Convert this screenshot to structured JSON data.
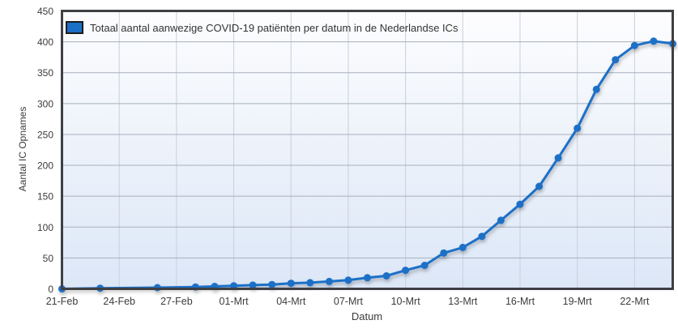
{
  "chart_data": {
    "type": "line",
    "title": "",
    "xlabel": "Datum",
    "ylabel": "Aantal IC Opnames",
    "legend_position": "top-left-inside",
    "grid": true,
    "ylim": [
      0,
      450
    ],
    "yticks": [
      0,
      50,
      100,
      150,
      200,
      250,
      300,
      350,
      400,
      450
    ],
    "x_day_span": [
      0,
      32
    ],
    "xticks": [
      {
        "day": 0,
        "label": "21-Feb"
      },
      {
        "day": 3,
        "label": "24-Feb"
      },
      {
        "day": 6,
        "label": "27-Feb"
      },
      {
        "day": 9,
        "label": "01-Mrt"
      },
      {
        "day": 12,
        "label": "04-Mrt"
      },
      {
        "day": 15,
        "label": "07-Mrt"
      },
      {
        "day": 18,
        "label": "10-Mrt"
      },
      {
        "day": 21,
        "label": "13-Mrt"
      },
      {
        "day": 24,
        "label": "16-Mrt"
      },
      {
        "day": 27,
        "label": "19-Mrt"
      },
      {
        "day": 30,
        "label": "22-Mrt"
      }
    ],
    "series": [
      {
        "name": "Totaal aantal aanwezige COVID-19 patiënten per datum in de Nederlandse ICs",
        "color": "#1b6fc7",
        "points": [
          {
            "date": "21-Feb",
            "day": 0,
            "value": 0
          },
          {
            "date": "23-Feb",
            "day": 2,
            "value": 1
          },
          {
            "date": "26-Feb",
            "day": 5,
            "value": 2
          },
          {
            "date": "28-Feb",
            "day": 7,
            "value": 3
          },
          {
            "date": "29-Feb",
            "day": 8,
            "value": 4
          },
          {
            "date": "01-Mrt",
            "day": 9,
            "value": 5
          },
          {
            "date": "02-Mrt",
            "day": 10,
            "value": 6
          },
          {
            "date": "03-Mrt",
            "day": 11,
            "value": 7
          },
          {
            "date": "04-Mrt",
            "day": 12,
            "value": 9
          },
          {
            "date": "05-Mrt",
            "day": 13,
            "value": 10
          },
          {
            "date": "06-Mrt",
            "day": 14,
            "value": 12
          },
          {
            "date": "07-Mrt",
            "day": 15,
            "value": 14
          },
          {
            "date": "08-Mrt",
            "day": 16,
            "value": 18
          },
          {
            "date": "09-Mrt",
            "day": 17,
            "value": 21
          },
          {
            "date": "10-Mrt",
            "day": 18,
            "value": 30
          },
          {
            "date": "11-Mrt",
            "day": 19,
            "value": 38
          },
          {
            "date": "12-Mrt",
            "day": 20,
            "value": 58
          },
          {
            "date": "13-Mrt",
            "day": 21,
            "value": 67
          },
          {
            "date": "14-Mrt",
            "day": 22,
            "value": 85
          },
          {
            "date": "15-Mrt",
            "day": 23,
            "value": 111
          },
          {
            "date": "16-Mrt",
            "day": 24,
            "value": 137
          },
          {
            "date": "17-Mrt",
            "day": 25,
            "value": 166
          },
          {
            "date": "18-Mrt",
            "day": 26,
            "value": 212
          },
          {
            "date": "19-Mrt",
            "day": 27,
            "value": 260
          },
          {
            "date": "20-Mrt",
            "day": 28,
            "value": 323
          },
          {
            "date": "21-Mrt",
            "day": 29,
            "value": 371
          },
          {
            "date": "22-Mrt",
            "day": 30,
            "value": 394
          },
          {
            "date": "23-Mrt",
            "day": 31,
            "value": 401
          },
          {
            "date": "24-Mrt",
            "day": 32,
            "value": 397
          }
        ]
      }
    ],
    "colors": {
      "line": "#1b6fc7",
      "plot_border": "#3e4044",
      "grid_horizontal": "#a9b0bc",
      "grid_vertical": "#c9d0da",
      "plot_bg_top": "#fdfdfe",
      "plot_bg_bottom": "#dce7f7",
      "text": "#3c3c3c",
      "page_bg": "#ffffff"
    }
  }
}
